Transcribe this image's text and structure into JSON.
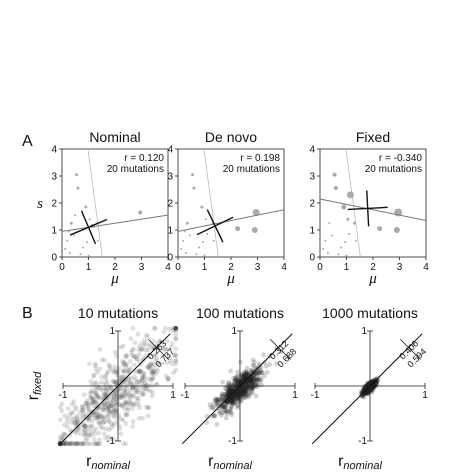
{
  "figure": {
    "panel_a": "A",
    "panel_b": "B"
  },
  "chart_data": [
    {
      "type": "scatter",
      "title": "Nominal",
      "xlabel": "μ",
      "ylabel": "s",
      "xlim": [
        0,
        4
      ],
      "ylim": [
        0,
        4
      ],
      "xticks": [
        "0",
        "1",
        "2",
        "3",
        "4"
      ],
      "yticks": [
        "0",
        "1",
        "2",
        "3",
        "4"
      ],
      "stat_r": "r = 0.120",
      "stat_n": "20 mutations",
      "points": [
        {
          "x": 0.12,
          "y": 0.3,
          "r": 1
        },
        {
          "x": 0.2,
          "y": 0.6,
          "r": 1
        },
        {
          "x": 0.3,
          "y": 0.15,
          "r": 1
        },
        {
          "x": 0.35,
          "y": 1.25,
          "r": 1.5
        },
        {
          "x": 0.45,
          "y": 0.8,
          "r": 1
        },
        {
          "x": 0.55,
          "y": 3.05,
          "r": 1.5
        },
        {
          "x": 0.6,
          "y": 2.55,
          "r": 1.5
        },
        {
          "x": 0.7,
          "y": 0.1,
          "r": 1
        },
        {
          "x": 0.8,
          "y": 0.35,
          "r": 1
        },
        {
          "x": 0.9,
          "y": 1.85,
          "r": 1.5
        },
        {
          "x": 0.95,
          "y": 0.55,
          "r": 1
        },
        {
          "x": 1.0,
          "y": 0.05,
          "r": 1
        },
        {
          "x": 1.05,
          "y": 1.4,
          "r": 1
        },
        {
          "x": 1.1,
          "y": 0.85,
          "r": 1
        },
        {
          "x": 1.15,
          "y": 1.15,
          "r": 2
        },
        {
          "x": 0.25,
          "y": 0.95,
          "r": 1
        },
        {
          "x": 1.3,
          "y": 1.25,
          "r": 1
        },
        {
          "x": 2.95,
          "y": 1.65,
          "r": 2
        },
        {
          "x": 0.5,
          "y": 1.55,
          "r": 1
        },
        {
          "x": 1.35,
          "y": 0.6,
          "r": 1
        }
      ],
      "fit_line": {
        "intercept": 0.95,
        "slope": 0.15
      },
      "cross": {
        "cx": 1.0,
        "cy": 1.1
      }
    },
    {
      "type": "scatter",
      "title": "De novo",
      "xlabel": "μ",
      "ylabel": "",
      "xlim": [
        0,
        4
      ],
      "ylim": [
        0,
        4
      ],
      "xticks": [
        "0",
        "1",
        "2",
        "3",
        "4"
      ],
      "yticks": [
        "0",
        "1",
        "2",
        "3",
        "4"
      ],
      "stat_r": "r = 0.198",
      "stat_n": "20 mutations",
      "points": [
        {
          "x": 0.12,
          "y": 0.3,
          "r": 1
        },
        {
          "x": 0.2,
          "y": 0.6,
          "r": 1
        },
        {
          "x": 0.3,
          "y": 0.15,
          "r": 1
        },
        {
          "x": 0.35,
          "y": 1.25,
          "r": 1.5
        },
        {
          "x": 0.45,
          "y": 0.8,
          "r": 1
        },
        {
          "x": 0.55,
          "y": 3.05,
          "r": 1.5
        },
        {
          "x": 0.6,
          "y": 2.55,
          "r": 1.5
        },
        {
          "x": 0.7,
          "y": 0.1,
          "r": 1
        },
        {
          "x": 0.8,
          "y": 0.35,
          "r": 1
        },
        {
          "x": 0.9,
          "y": 1.85,
          "r": 1.5
        },
        {
          "x": 0.95,
          "y": 0.55,
          "r": 1
        },
        {
          "x": 1.0,
          "y": 0.05,
          "r": 1
        },
        {
          "x": 1.05,
          "y": 1.4,
          "r": 1
        },
        {
          "x": 1.1,
          "y": 0.85,
          "r": 1
        },
        {
          "x": 2.25,
          "y": 1.05,
          "r": 2.5
        },
        {
          "x": 0.25,
          "y": 0.95,
          "r": 1
        },
        {
          "x": 1.3,
          "y": 1.25,
          "r": 1
        },
        {
          "x": 2.95,
          "y": 1.65,
          "r": 3.5
        },
        {
          "x": 2.9,
          "y": 1.0,
          "r": 3
        },
        {
          "x": 1.35,
          "y": 0.6,
          "r": 1
        }
      ],
      "fit_line": {
        "intercept": 0.95,
        "slope": 0.2
      },
      "cross": {
        "cx": 1.4,
        "cy": 1.15
      }
    },
    {
      "type": "scatter",
      "title": "Fixed",
      "xlabel": "μ",
      "ylabel": "",
      "xlim": [
        0,
        4
      ],
      "ylim": [
        0,
        4
      ],
      "xticks": [
        "0",
        "1",
        "2",
        "3",
        "4"
      ],
      "yticks": [
        "0",
        "1",
        "2",
        "3",
        "4"
      ],
      "stat_r": "r = -0.340",
      "stat_n": "20 mutations",
      "points": [
        {
          "x": 0.12,
          "y": 0.3,
          "r": 1
        },
        {
          "x": 0.2,
          "y": 0.6,
          "r": 1
        },
        {
          "x": 0.3,
          "y": 0.15,
          "r": 1
        },
        {
          "x": 0.35,
          "y": 1.25,
          "r": 1
        },
        {
          "x": 0.45,
          "y": 0.8,
          "r": 1
        },
        {
          "x": 0.55,
          "y": 3.05,
          "r": 2
        },
        {
          "x": 0.6,
          "y": 2.55,
          "r": 2
        },
        {
          "x": 0.7,
          "y": 0.1,
          "r": 1
        },
        {
          "x": 0.8,
          "y": 0.35,
          "r": 1
        },
        {
          "x": 0.9,
          "y": 1.85,
          "r": 2.5
        },
        {
          "x": 0.95,
          "y": 0.55,
          "r": 1
        },
        {
          "x": 1.0,
          "y": 0.05,
          "r": 1
        },
        {
          "x": 1.05,
          "y": 1.4,
          "r": 1.5
        },
        {
          "x": 1.1,
          "y": 0.85,
          "r": 1
        },
        {
          "x": 2.25,
          "y": 1.05,
          "r": 2.5
        },
        {
          "x": 1.15,
          "y": 2.3,
          "r": 3.5
        },
        {
          "x": 1.3,
          "y": 1.25,
          "r": 1.5
        },
        {
          "x": 2.95,
          "y": 1.65,
          "r": 4
        },
        {
          "x": 2.9,
          "y": 1.0,
          "r": 3
        },
        {
          "x": 1.35,
          "y": 0.6,
          "r": 1
        }
      ],
      "fit_line": {
        "intercept": 2.15,
        "slope": -0.2
      },
      "cross": {
        "cx": 1.8,
        "cy": 1.8
      }
    }
  ],
  "density_panels": [
    {
      "title": "10 mutations",
      "xlabel": "r",
      "xlabel_sub": "nominal",
      "ylabel": "r",
      "ylabel_sub": "fixed",
      "tick_neg": "-1",
      "tick_pos": "1",
      "frac_above": "0.263",
      "frac_below": "0.737",
      "spread": 0.45,
      "bias": -0.2,
      "n": 650
    },
    {
      "title": "100 mutations",
      "xlabel": "r",
      "xlabel_sub": "nominal",
      "ylabel": "",
      "ylabel_sub": "",
      "tick_neg": "-1",
      "tick_pos": "1",
      "frac_above": "0.312",
      "frac_below": "0.688",
      "spread": 0.16,
      "bias": -0.06,
      "n": 650
    },
    {
      "title": "1000 mutations",
      "xlabel": "r",
      "xlabel_sub": "nominal",
      "ylabel": "",
      "ylabel_sub": "",
      "tick_neg": "-1",
      "tick_pos": "1",
      "frac_above": "0.406",
      "frac_below": "0.594",
      "spread": 0.045,
      "bias": -0.02,
      "n": 650
    }
  ]
}
